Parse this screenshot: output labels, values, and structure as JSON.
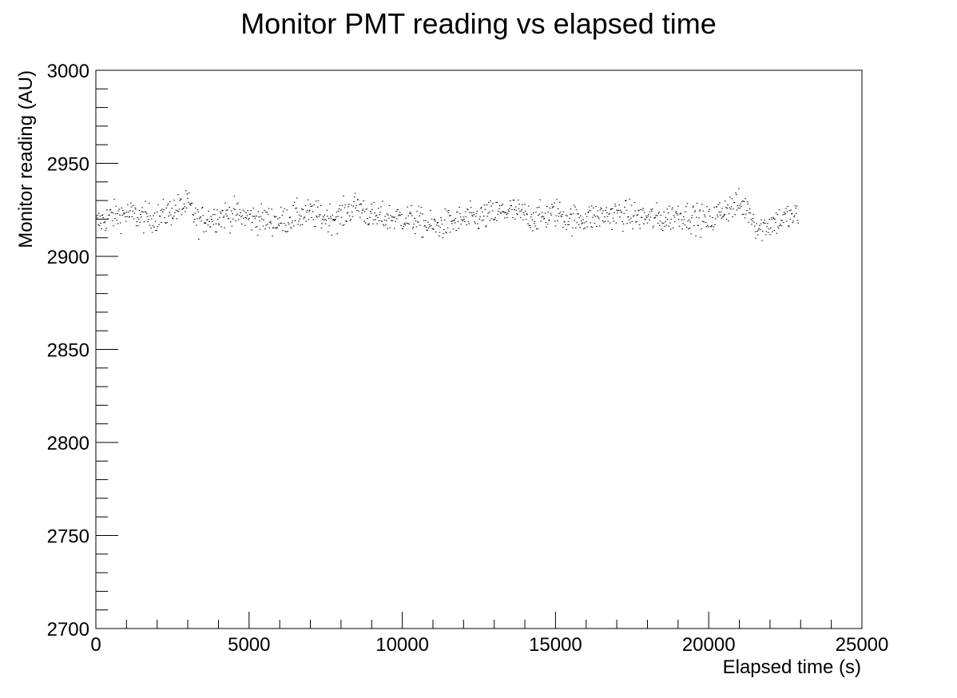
{
  "chart_data": {
    "type": "scatter",
    "title": "Monitor PMT reading vs elapsed time",
    "xlabel": "Elapsed time (s)",
    "ylabel": "Monitor reading (AU)",
    "xlim": [
      0,
      25000
    ],
    "ylim": [
      2700,
      3000
    ],
    "x_ticks": [
      "0",
      "5000",
      "10000",
      "15000",
      "20000",
      "25000"
    ],
    "y_ticks": [
      "2700",
      "2750",
      "2800",
      "2850",
      "2900",
      "2950",
      "3000"
    ],
    "grid": false,
    "legend": "none",
    "marker_color": "#000000",
    "series": [
      {
        "sampling_interval_s": 20,
        "x_range": [
          0,
          22900
        ],
        "mean": 2921,
        "scatter_half_width": 7,
        "trend": [
          [
            0,
            2918
          ],
          [
            500,
            2922
          ],
          [
            1000,
            2923
          ],
          [
            1500,
            2921
          ],
          [
            2000,
            2921
          ],
          [
            2500,
            2925
          ],
          [
            3000,
            2928
          ],
          [
            3300,
            2919
          ],
          [
            3500,
            2920
          ],
          [
            4000,
            2922
          ],
          [
            4500,
            2923
          ],
          [
            5000,
            2921
          ],
          [
            5500,
            2920
          ],
          [
            6000,
            2919
          ],
          [
            6500,
            2922
          ],
          [
            7000,
            2923
          ],
          [
            7500,
            2921
          ],
          [
            8000,
            2922
          ],
          [
            8500,
            2928
          ],
          [
            9000,
            2921
          ],
          [
            9500,
            2921
          ],
          [
            10000,
            2921
          ],
          [
            10500,
            2919
          ],
          [
            11000,
            2916
          ],
          [
            11500,
            2918
          ],
          [
            12000,
            2920
          ],
          [
            12500,
            2921
          ],
          [
            13000,
            2923
          ],
          [
            13500,
            2925
          ],
          [
            14000,
            2922
          ],
          [
            14500,
            2921
          ],
          [
            15000,
            2924
          ],
          [
            15500,
            2920
          ],
          [
            16000,
            2921
          ],
          [
            16500,
            2922
          ],
          [
            17000,
            2923
          ],
          [
            17500,
            2922
          ],
          [
            18000,
            2921
          ],
          [
            18500,
            2920
          ],
          [
            19000,
            2923
          ],
          [
            19500,
            2921
          ],
          [
            20000,
            2919
          ],
          [
            20500,
            2926
          ],
          [
            21000,
            2928
          ],
          [
            21300,
            2925
          ],
          [
            21600,
            2915
          ],
          [
            22000,
            2918
          ],
          [
            22500,
            2921
          ],
          [
            22900,
            2922
          ]
        ]
      }
    ]
  }
}
